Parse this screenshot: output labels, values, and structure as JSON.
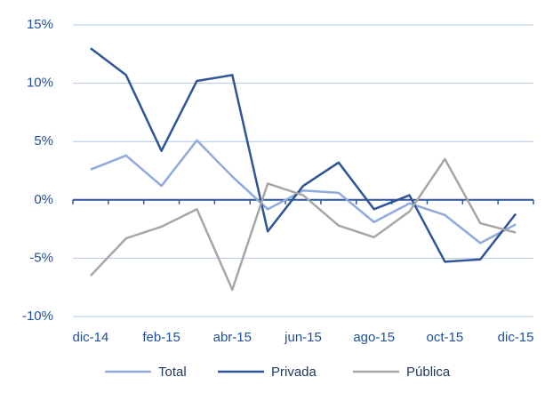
{
  "chart_data": {
    "type": "line",
    "categories": [
      "dic-14",
      null,
      "feb-15",
      null,
      "abr-15",
      null,
      "jun-15",
      null,
      "ago-15",
      null,
      "oct-15",
      null,
      "dic-15"
    ],
    "series": [
      {
        "name": "Total",
        "color": "#8faadc",
        "values": [
          2.6,
          3.8,
          1.2,
          5.1,
          2.0,
          -0.8,
          0.8,
          0.6,
          -1.9,
          -0.3,
          -1.3,
          -3.7,
          -2.1
        ]
      },
      {
        "name": "Privada",
        "color": "#2f5597",
        "values": [
          13.0,
          10.7,
          4.2,
          10.2,
          10.7,
          -2.7,
          1.2,
          3.2,
          -0.8,
          0.4,
          -5.3,
          -5.1,
          -1.2
        ]
      },
      {
        "name": "Pública",
        "color": "#a6a6a6",
        "values": [
          -6.5,
          -3.3,
          -2.3,
          -0.8,
          -7.7,
          1.4,
          0.4,
          -2.2,
          -3.2,
          -1.0,
          3.5,
          -2.0,
          -2.8
        ]
      }
    ],
    "ylim": [
      -10,
      15
    ],
    "yticks": [
      {
        "value": -10,
        "label": "-10%"
      },
      {
        "value": -5,
        "label": "-5%"
      },
      {
        "value": 0,
        "label": "0%"
      },
      {
        "value": 5,
        "label": "5%"
      },
      {
        "value": 10,
        "label": "10%"
      },
      {
        "value": 15,
        "label": "15%"
      }
    ],
    "grid": true,
    "legend": "bottom"
  }
}
